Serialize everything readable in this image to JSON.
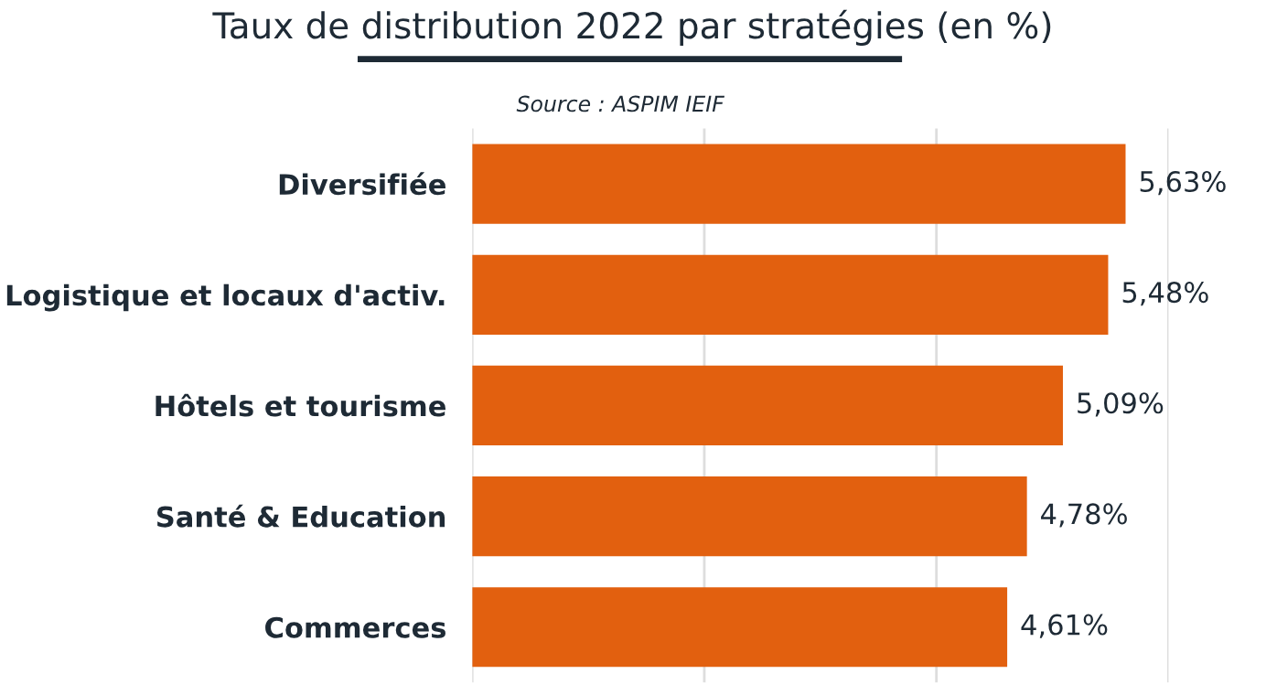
{
  "chart_data": {
    "type": "bar",
    "orientation": "horizontal",
    "title": "Taux de distribution 2022 par stratégies (en %)",
    "annotations": [
      "Source : ASPIM IEIF"
    ],
    "categories": [
      "Diversifiée",
      "Logistique et locaux d'activ.",
      "Hôtels et tourisme",
      "Santé & Education",
      "Commerces"
    ],
    "values": [
      5.63,
      5.48,
      5.09,
      4.78,
      4.61
    ],
    "value_labels": [
      "5,63%",
      "5,48%",
      "5,09%",
      "4,78%",
      "4,61%"
    ],
    "color": "#e2600f",
    "xlim": [
      0,
      6
    ],
    "xticks": [
      {
        "value": 0,
        "label": null
      },
      {
        "value": 2,
        "label": null
      },
      {
        "value": 4,
        "label": null
      },
      {
        "value": 6,
        "label": null
      }
    ],
    "grid": "x",
    "tick_labels": "y",
    "legend": false
  }
}
